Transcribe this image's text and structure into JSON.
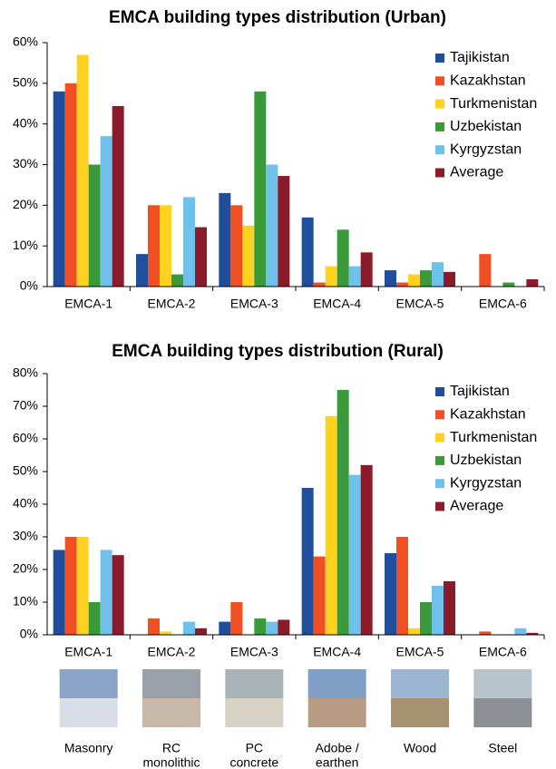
{
  "chart_data": [
    {
      "type": "bar",
      "title": "EMCA building types distribution (Urban)",
      "categories": [
        "EMCA-1",
        "EMCA-2",
        "EMCA-3",
        "EMCA-4",
        "EMCA-5",
        "EMCA-6"
      ],
      "series": [
        {
          "name": "Tajikistan",
          "color": "#1f4e9c",
          "values": [
            48,
            8,
            23,
            17,
            4,
            0
          ]
        },
        {
          "name": "Kazakhstan",
          "color": "#f04e23",
          "values": [
            50,
            20,
            20,
            1,
            1,
            8
          ]
        },
        {
          "name": "Turkmenistan",
          "color": "#ffd21f",
          "values": [
            57,
            20,
            15,
            5,
            3,
            0
          ]
        },
        {
          "name": "Uzbekistan",
          "color": "#3a9a3a",
          "values": [
            30,
            3,
            48,
            14,
            4,
            1
          ]
        },
        {
          "name": "Kyrgyzstan",
          "color": "#6ec1ea",
          "values": [
            37,
            22,
            30,
            5,
            6,
            0
          ]
        },
        {
          "name": "Average",
          "color": "#8b1a2b",
          "values": [
            44.4,
            14.6,
            27.2,
            8.4,
            3.6,
            1.8
          ]
        }
      ],
      "ylim": [
        0,
        60
      ],
      "yticks": [
        {
          "value": 0,
          "label": "0%"
        },
        {
          "value": 10,
          "label": "10%"
        },
        {
          "value": 20,
          "label": "20%"
        },
        {
          "value": 30,
          "label": "30%"
        },
        {
          "value": 40,
          "label": "40%"
        },
        {
          "value": 50,
          "label": "50%"
        },
        {
          "value": 60,
          "label": "60%"
        }
      ],
      "legend": "top-right",
      "grid": false
    },
    {
      "type": "bar",
      "title": "EMCA building types distribution (Rural)",
      "categories": [
        "EMCA-1",
        "EMCA-2",
        "EMCA-3",
        "EMCA-4",
        "EMCA-5",
        "EMCA-6"
      ],
      "series": [
        {
          "name": "Tajikistan",
          "color": "#1f4e9c",
          "values": [
            26,
            0,
            4,
            45,
            25,
            0
          ]
        },
        {
          "name": "Kazakhstan",
          "color": "#f04e23",
          "values": [
            30,
            5,
            10,
            24,
            30,
            1
          ]
        },
        {
          "name": "Turkmenistan",
          "color": "#ffd21f",
          "values": [
            30,
            1,
            0,
            67,
            2,
            0
          ]
        },
        {
          "name": "Uzbekistan",
          "color": "#3a9a3a",
          "values": [
            10,
            0,
            5,
            75,
            10,
            0
          ]
        },
        {
          "name": "Kyrgyzstan",
          "color": "#6ec1ea",
          "values": [
            26,
            4,
            4,
            49,
            15,
            2
          ]
        },
        {
          "name": "Average",
          "color": "#8b1a2b",
          "values": [
            24.4,
            2,
            4.6,
            52,
            16.4,
            0.6
          ]
        }
      ],
      "ylim": [
        0,
        80
      ],
      "yticks": [
        {
          "value": 0,
          "label": "0%"
        },
        {
          "value": 10,
          "label": "10%"
        },
        {
          "value": 20,
          "label": "20%"
        },
        {
          "value": 30,
          "label": "30%"
        },
        {
          "value": 40,
          "label": "40%"
        },
        {
          "value": 50,
          "label": "50%"
        },
        {
          "value": 60,
          "label": "60%"
        },
        {
          "value": 70,
          "label": "70%"
        },
        {
          "value": 80,
          "label": "80%"
        }
      ],
      "legend": "top-right",
      "grid": false
    }
  ],
  "images": {
    "captions": [
      [
        "Masonry"
      ],
      [
        "RC",
        "monolithic"
      ],
      [
        "PC",
        "concrete"
      ],
      [
        "Adobe /",
        "earthen"
      ],
      [
        "Wood"
      ],
      [
        "Steel"
      ]
    ]
  }
}
